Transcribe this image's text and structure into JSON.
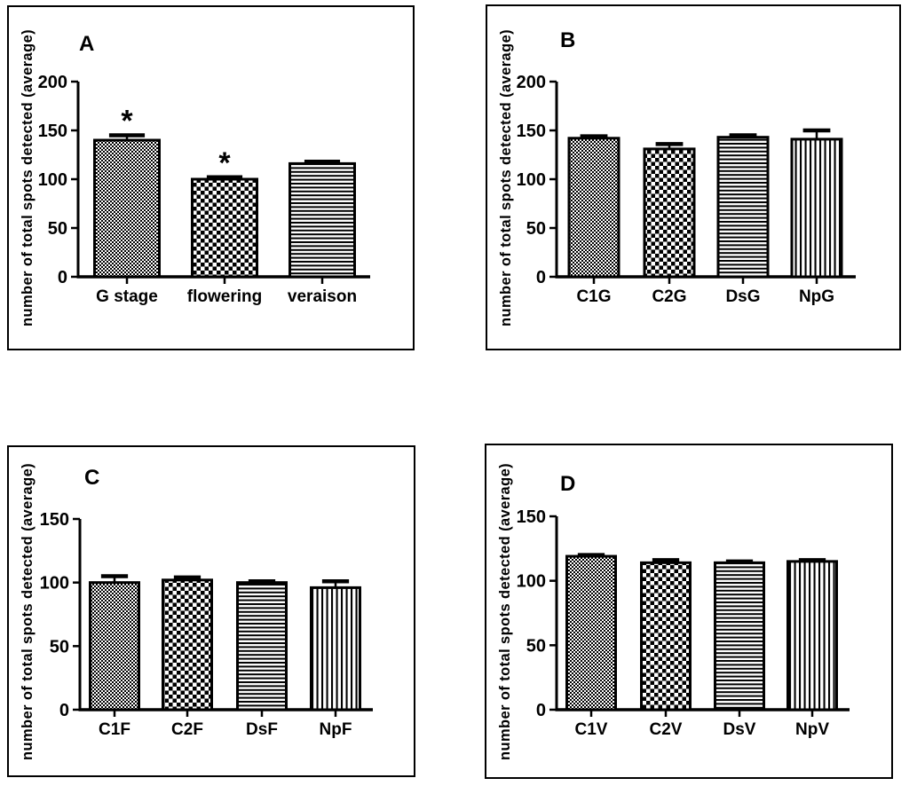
{
  "figure_title": "",
  "colors": {
    "ink": "#000000",
    "background": "#ffffff"
  },
  "chart_data": [
    {
      "type": "bar",
      "panel_label": "A",
      "ylabel": "number of total spots detected (average)",
      "xlabel": "",
      "ylim": [
        0,
        200
      ],
      "yticks": [
        0,
        50,
        100,
        150,
        200
      ],
      "categories": [
        "G stage",
        "flowering",
        "veraison"
      ],
      "values": [
        140,
        100,
        116
      ],
      "errors": [
        5,
        2,
        2
      ],
      "annotations": [
        "*",
        "*",
        ""
      ],
      "patterns": [
        "fine-checkerboard",
        "checkerboard",
        "horizontal-lines"
      ],
      "grid": false,
      "legend": "none"
    },
    {
      "type": "bar",
      "panel_label": "B",
      "ylabel": "number of total spots detected (average)",
      "xlabel": "",
      "ylim": [
        0,
        200
      ],
      "yticks": [
        0,
        50,
        100,
        150,
        200
      ],
      "categories": [
        "C1G",
        "C2G",
        "DsG",
        "NpG"
      ],
      "values": [
        142,
        131,
        143,
        141
      ],
      "errors": [
        2,
        5,
        2,
        9
      ],
      "annotations": [
        "",
        "",
        "",
        ""
      ],
      "patterns": [
        "fine-checkerboard",
        "checkerboard",
        "horizontal-lines",
        "vertical-lines"
      ],
      "grid": false,
      "legend": "none"
    },
    {
      "type": "bar",
      "panel_label": "C",
      "ylabel": "number of total spots detected (average)",
      "xlabel": "",
      "ylim": [
        0,
        150
      ],
      "yticks": [
        0,
        50,
        100,
        150
      ],
      "categories": [
        "C1F",
        "C2F",
        "DsF",
        "NpF"
      ],
      "values": [
        100,
        102,
        100,
        96
      ],
      "errors": [
        5,
        2,
        1,
        5
      ],
      "annotations": [
        "",
        "",
        "",
        ""
      ],
      "patterns": [
        "fine-checkerboard",
        "checkerboard",
        "horizontal-lines",
        "vertical-lines"
      ],
      "grid": false,
      "legend": "none"
    },
    {
      "type": "bar",
      "panel_label": "D",
      "ylabel": "number of total spots detected (average)",
      "xlabel": "",
      "ylim": [
        0,
        150
      ],
      "yticks": [
        0,
        50,
        100,
        150
      ],
      "categories": [
        "C1V",
        "C2V",
        "DsV",
        "NpV"
      ],
      "values": [
        119,
        114,
        114,
        115
      ],
      "errors": [
        1,
        2,
        1,
        1
      ],
      "annotations": [
        "",
        "",
        "",
        ""
      ],
      "patterns": [
        "fine-checkerboard",
        "checkerboard",
        "horizontal-lines",
        "vertical-lines"
      ],
      "grid": false,
      "legend": "none"
    }
  ]
}
